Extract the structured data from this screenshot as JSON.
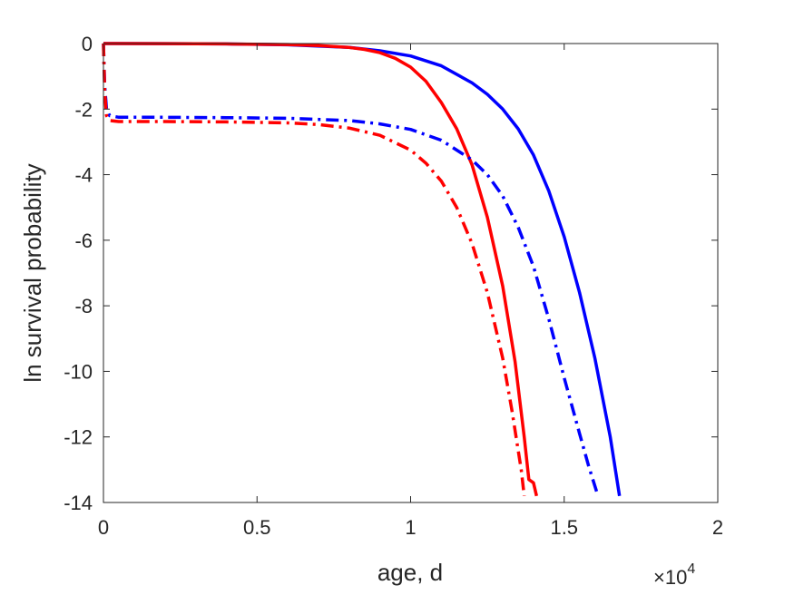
{
  "chart_data": {
    "type": "line",
    "title": "",
    "xlabel": "age, d",
    "ylabel": "ln survival probability",
    "x_exponent_prefix": "×10",
    "x_exponent_power": "4",
    "x_scale_factor": 10000,
    "xlim": [
      0,
      20000
    ],
    "ylim": [
      -14,
      0
    ],
    "x_ticks": [
      0,
      5000,
      10000,
      15000,
      20000
    ],
    "x_tick_labels": [
      "0",
      "0.5",
      "1",
      "1.5",
      "2"
    ],
    "y_ticks": [
      0,
      -2,
      -4,
      -6,
      -8,
      -10,
      -12,
      -14
    ],
    "y_tick_labels": [
      "0",
      "-2",
      "-4",
      "-6",
      "-8",
      "-10",
      "-12",
      "-14"
    ],
    "grid": false,
    "series": [
      {
        "color": "#0000ff",
        "style": "solid",
        "points": [
          [
            0,
            0
          ],
          [
            2000,
            -0.002
          ],
          [
            4000,
            -0.01
          ],
          [
            6000,
            -0.04
          ],
          [
            8000,
            -0.12
          ],
          [
            9000,
            -0.22
          ],
          [
            10000,
            -0.38
          ],
          [
            11000,
            -0.68
          ],
          [
            12000,
            -1.2
          ],
          [
            12500,
            -1.55
          ],
          [
            13000,
            -2.0
          ],
          [
            13500,
            -2.6
          ],
          [
            14000,
            -3.4
          ],
          [
            14500,
            -4.5
          ],
          [
            15000,
            -5.9
          ],
          [
            15500,
            -7.6
          ],
          [
            16000,
            -9.6
          ],
          [
            16500,
            -12.0
          ],
          [
            16800,
            -13.8
          ]
        ]
      },
      {
        "color": "#ff0000",
        "style": "solid",
        "points": [
          [
            0,
            0
          ],
          [
            2000,
            -0.002
          ],
          [
            4000,
            -0.01
          ],
          [
            6000,
            -0.03
          ],
          [
            7000,
            -0.06
          ],
          [
            8000,
            -0.12
          ],
          [
            8500,
            -0.18
          ],
          [
            9000,
            -0.28
          ],
          [
            9500,
            -0.45
          ],
          [
            10000,
            -0.72
          ],
          [
            10500,
            -1.15
          ],
          [
            11000,
            -1.8
          ],
          [
            11500,
            -2.6
          ],
          [
            12000,
            -3.7
          ],
          [
            12500,
            -5.3
          ],
          [
            13000,
            -7.4
          ],
          [
            13400,
            -9.7
          ],
          [
            13700,
            -12.0
          ],
          [
            13850,
            -13.3
          ],
          [
            14000,
            -13.4
          ],
          [
            14100,
            -13.8
          ]
        ]
      },
      {
        "color": "#0000ff",
        "style": "dashdot",
        "points": [
          [
            0,
            0
          ],
          [
            40,
            -1.3
          ],
          [
            100,
            -2.0
          ],
          [
            200,
            -2.2
          ],
          [
            500,
            -2.25
          ],
          [
            2000,
            -2.25
          ],
          [
            4000,
            -2.26
          ],
          [
            6000,
            -2.28
          ],
          [
            8000,
            -2.35
          ],
          [
            9000,
            -2.45
          ],
          [
            10000,
            -2.62
          ],
          [
            11000,
            -2.95
          ],
          [
            12000,
            -3.55
          ],
          [
            12500,
            -4.0
          ],
          [
            13000,
            -4.65
          ],
          [
            13500,
            -5.6
          ],
          [
            14000,
            -6.8
          ],
          [
            14500,
            -8.4
          ],
          [
            15000,
            -10.2
          ],
          [
            15500,
            -11.9
          ],
          [
            15800,
            -12.9
          ],
          [
            16100,
            -13.8
          ]
        ]
      },
      {
        "color": "#ff0000",
        "style": "dashdot",
        "points": [
          [
            0,
            0
          ],
          [
            40,
            -1.5
          ],
          [
            100,
            -2.2
          ],
          [
            200,
            -2.35
          ],
          [
            500,
            -2.38
          ],
          [
            2000,
            -2.38
          ],
          [
            4000,
            -2.39
          ],
          [
            6000,
            -2.42
          ],
          [
            7000,
            -2.47
          ],
          [
            8000,
            -2.58
          ],
          [
            9000,
            -2.8
          ],
          [
            10000,
            -3.25
          ],
          [
            10500,
            -3.65
          ],
          [
            11000,
            -4.2
          ],
          [
            11500,
            -5.0
          ],
          [
            12000,
            -6.1
          ],
          [
            12500,
            -7.6
          ],
          [
            13000,
            -9.6
          ],
          [
            13300,
            -11.2
          ],
          [
            13600,
            -13.0
          ],
          [
            13700,
            -13.8
          ]
        ]
      }
    ]
  }
}
